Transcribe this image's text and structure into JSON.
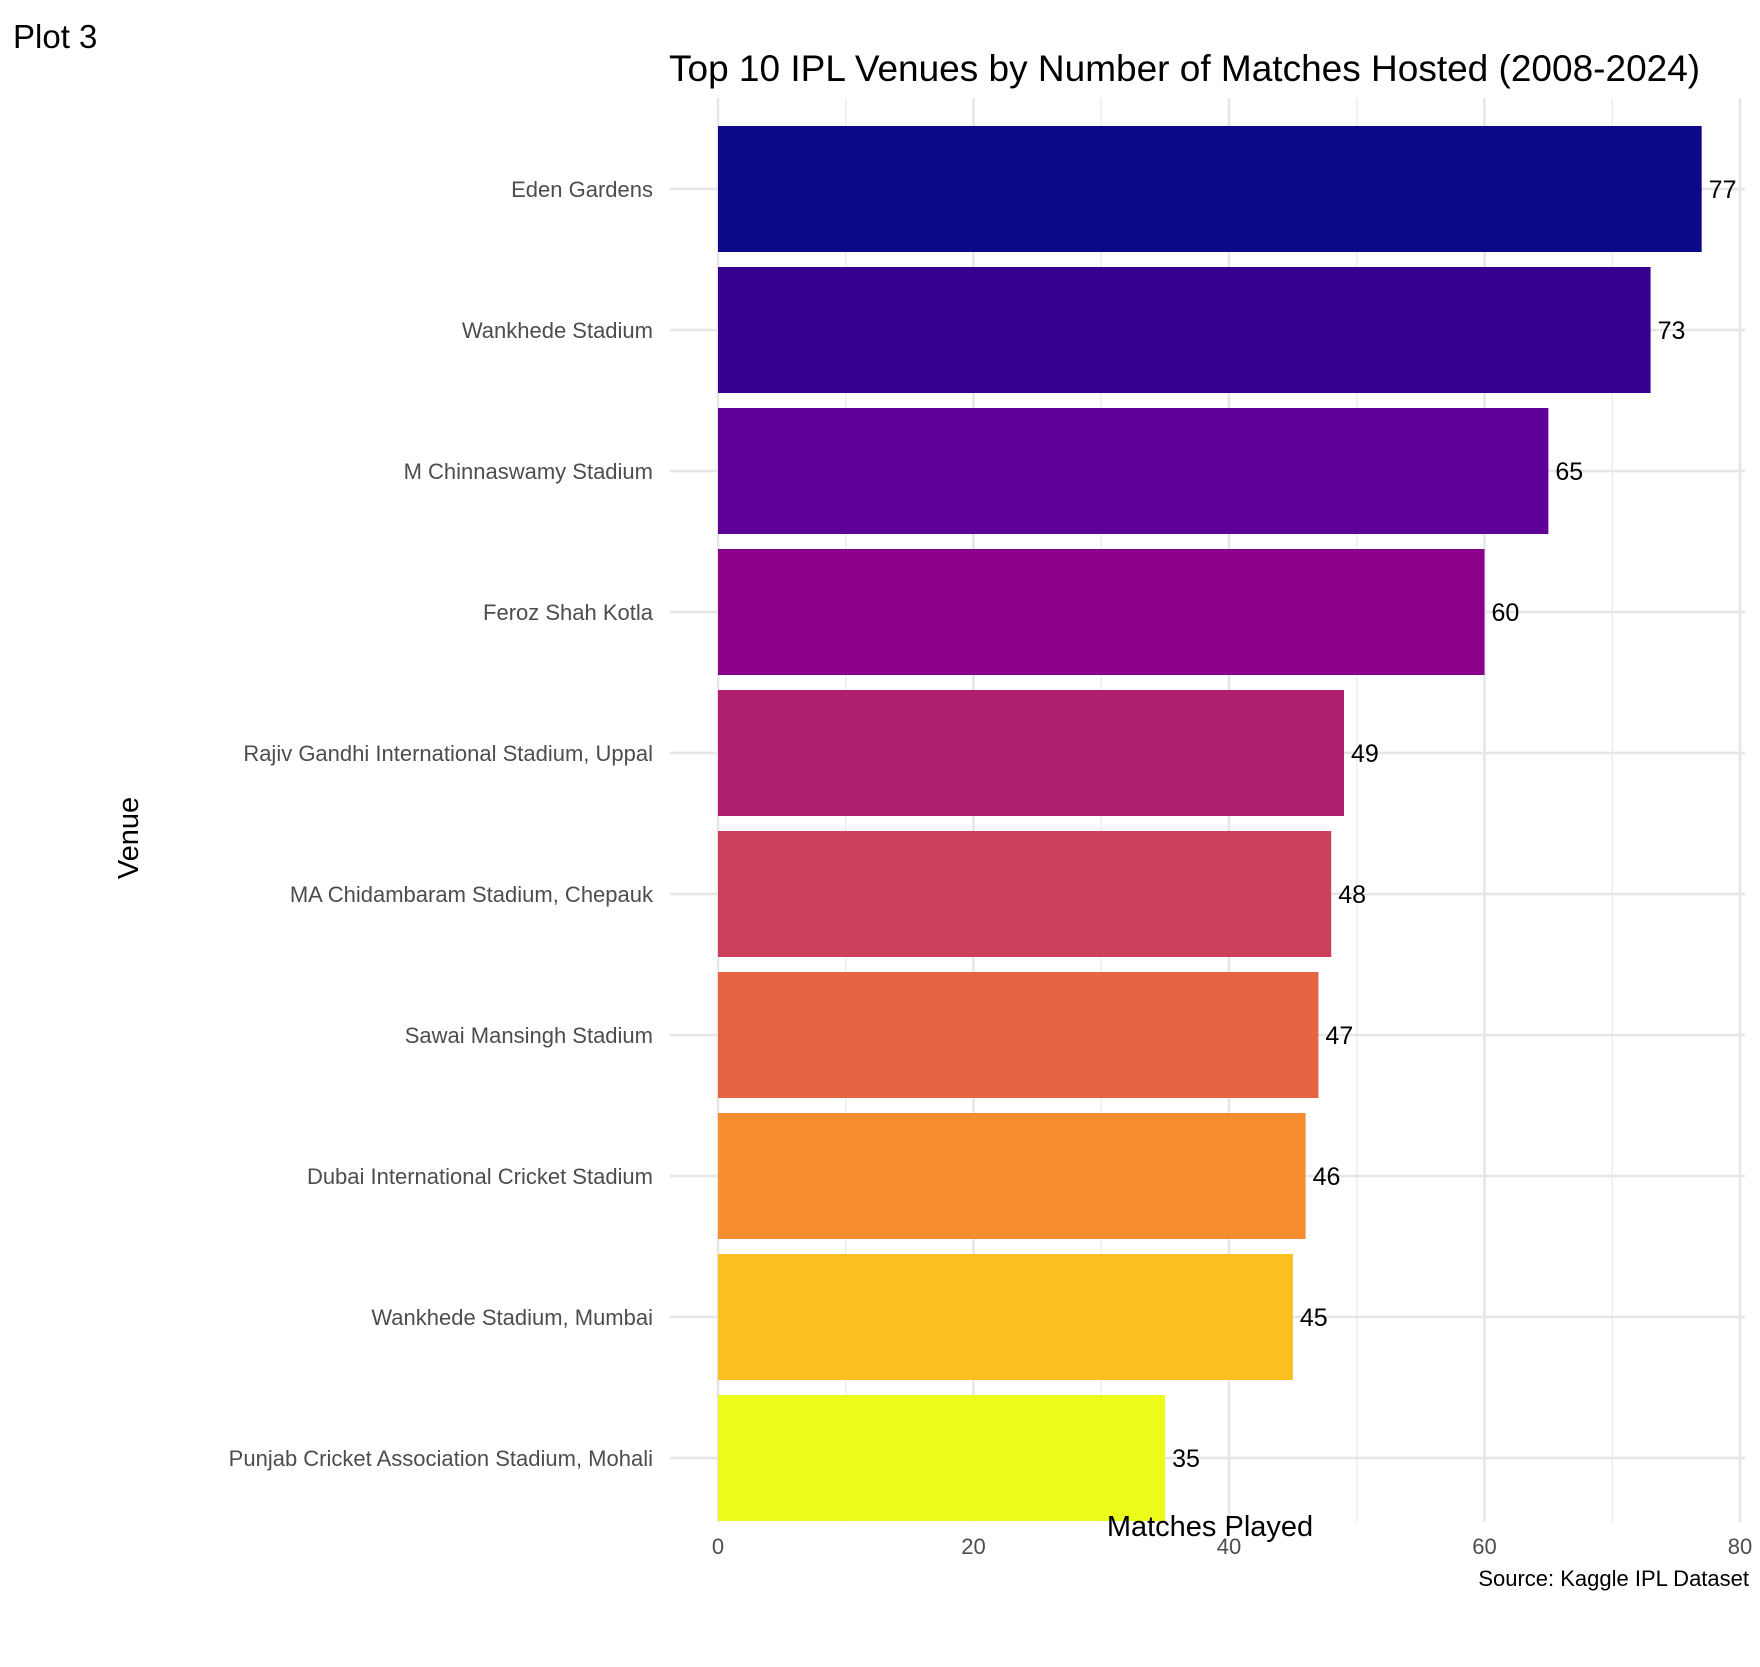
{
  "plot_tag": "Plot 3",
  "caption": "Source: Kaggle IPL Dataset",
  "chart_data": {
    "type": "bar",
    "orientation": "horizontal",
    "title": "Top 10 IPL Venues by Number of Matches Hosted (2008-2024)",
    "xlabel": "Matches Played",
    "ylabel": "Venue",
    "xlim": [
      0,
      80
    ],
    "xticks": [
      0,
      20,
      40,
      60,
      80
    ],
    "grid": true,
    "categories": [
      "Eden Gardens",
      "Wankhede Stadium",
      "M Chinnaswamy Stadium",
      "Feroz Shah Kotla",
      "Rajiv Gandhi International Stadium, Uppal",
      "MA Chidambaram Stadium, Chepauk",
      "Sawai Mansingh Stadium",
      "Dubai International Cricket Stadium",
      "Wankhede Stadium, Mumbai",
      "Punjab Cricket Association Stadium, Mohali"
    ],
    "values": [
      77,
      73,
      65,
      60,
      49,
      48,
      47,
      46,
      45,
      35
    ],
    "colors": [
      "#0d0887",
      "#370091",
      "#5e0098",
      "#8a008a",
      "#af1f6d",
      "#cc3f5a",
      "#e56444",
      "#f68d2f",
      "#fbbf20",
      "#ecfb1a"
    ]
  }
}
